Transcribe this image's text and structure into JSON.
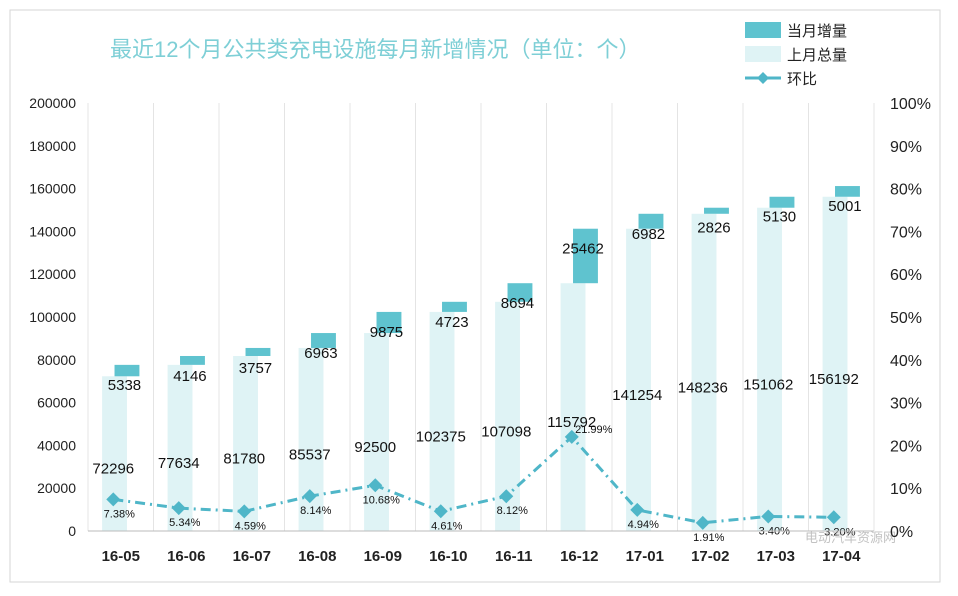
{
  "title": "最近12个月公共类充电设施每月新增情况（单位：个）",
  "legend": [
    {
      "label": "当月增量",
      "color": "#5fc3cf"
    },
    {
      "label": "上月总量",
      "color": "#dff3f5"
    },
    {
      "label": "环比",
      "color": "#4fb6c8"
    }
  ],
  "watermark": "电动汽车资源网",
  "chart_data": {
    "type": "bar",
    "categories": [
      "16-05",
      "16-06",
      "16-07",
      "16-08",
      "16-09",
      "16-10",
      "16-11",
      "16-12",
      "17-01",
      "17-02",
      "17-03",
      "17-04"
    ],
    "series": [
      {
        "name": "上月总量",
        "values": [
          72296,
          77634,
          81780,
          85537,
          92500,
          102375,
          107098,
          115792,
          141254,
          148236,
          151062,
          156192
        ]
      },
      {
        "name": "当月增量",
        "values": [
          5338,
          4146,
          3757,
          6963,
          9875,
          4723,
          8694,
          25462,
          6982,
          2826,
          5130,
          5001
        ]
      },
      {
        "name": "环比",
        "axis": "right",
        "values": [
          7.38,
          5.34,
          4.59,
          8.14,
          10.68,
          4.61,
          8.12,
          21.99,
          4.94,
          1.91,
          3.4,
          3.2
        ],
        "labels": [
          "7.38%",
          "5.34%",
          "4.59%",
          "8.14%",
          "10.68%",
          "4.61%",
          "8.12%",
          "21.99%",
          "4.94%",
          "1.91%",
          "3.40%",
          "3.20%"
        ]
      }
    ],
    "y_left": {
      "min": 0,
      "max": 200000,
      "ticks": [
        "0",
        "20000",
        "40000",
        "60000",
        "80000",
        "100000",
        "120000",
        "140000",
        "160000",
        "180000",
        "200000"
      ]
    },
    "y_right": {
      "min": 0,
      "max": 100,
      "ticks": [
        "0%",
        "10%",
        "20%",
        "30%",
        "40%",
        "50%",
        "60%",
        "70%",
        "80%",
        "90%",
        "100%"
      ]
    },
    "grid": "vertical",
    "legend_position": "top-right"
  }
}
